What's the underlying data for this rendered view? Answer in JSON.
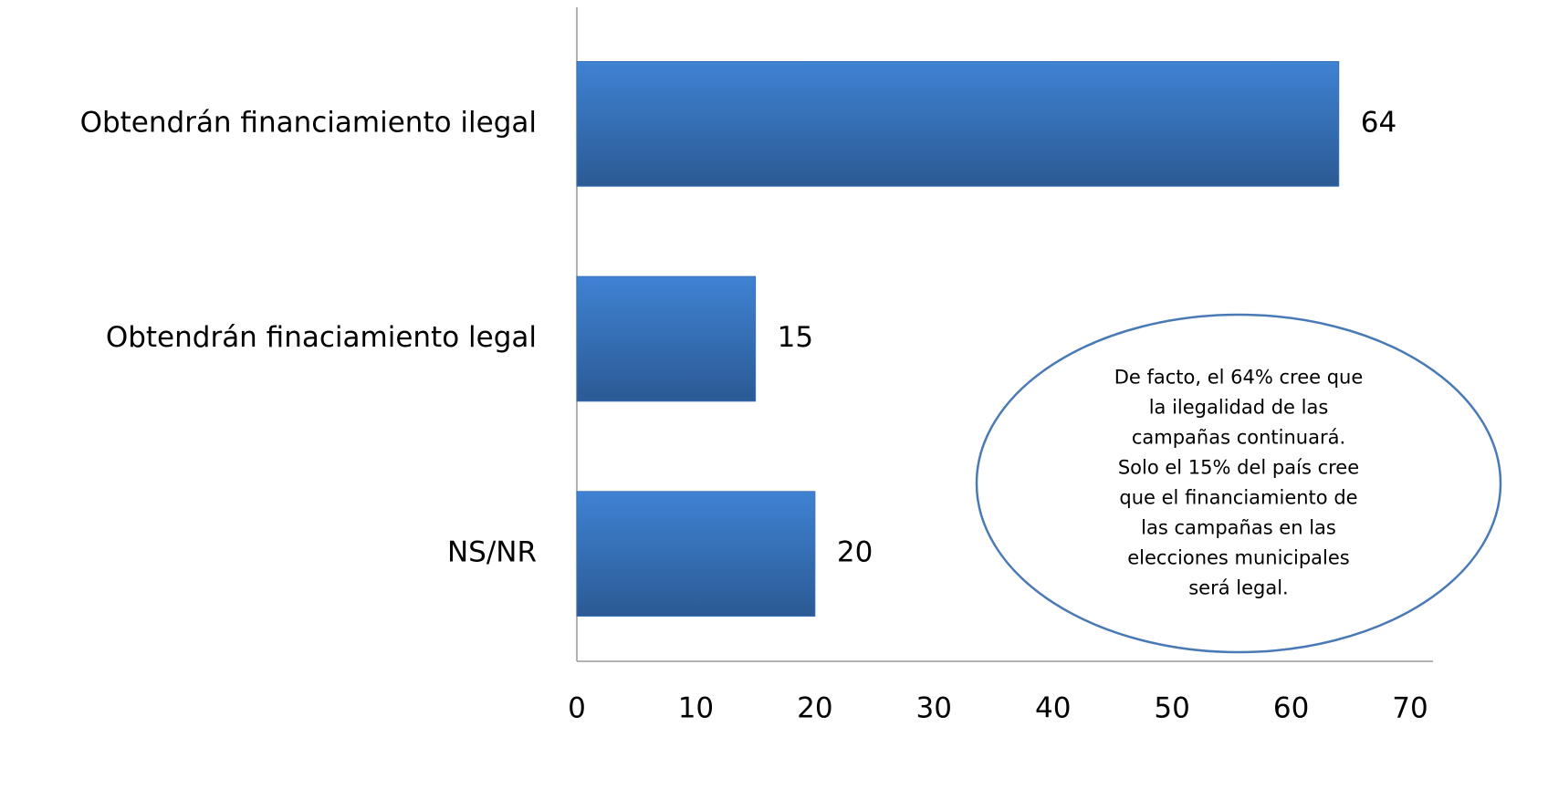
{
  "chart_data": {
    "type": "bar",
    "orientation": "horizontal",
    "categories": [
      "Obtendrán financiamiento ilegal",
      "Obtendrán finaciamiento legal",
      "NS/NR"
    ],
    "values": [
      64,
      15,
      20
    ],
    "color": "#3a70b8",
    "xlim": [
      0,
      70
    ],
    "xticks": [
      0,
      10,
      20,
      30,
      40,
      50,
      60,
      70
    ],
    "grid": false,
    "annotation": [
      "De facto, el 64% cree que",
      "la ilegalidad de las",
      "campañas continuará.",
      "Solo el 15% del país cree",
      "que el financiamiento de",
      "las campañas en las",
      "elecciones municipales",
      "será legal."
    ]
  }
}
